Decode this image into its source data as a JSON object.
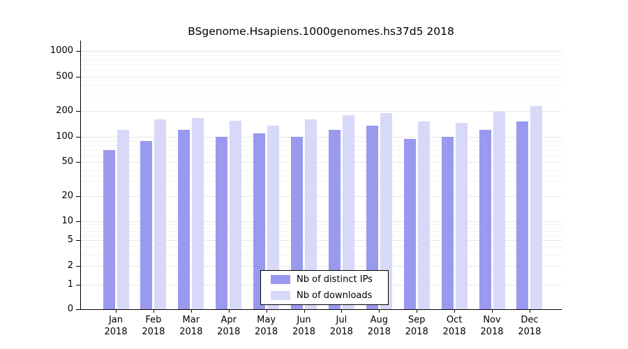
{
  "chart_data": {
    "type": "bar",
    "title": "BSgenome.Hsapiens.1000genomes.hs37d5 2018",
    "categories": [
      "Jan",
      "Feb",
      "Mar",
      "Apr",
      "May",
      "Jun",
      "Jul",
      "Aug",
      "Sep",
      "Oct",
      "Nov",
      "Dec"
    ],
    "category_year": "2018",
    "series": [
      {
        "name": "Nb of distinct IPs",
        "color": "#9999ee",
        "values": [
          70,
          90,
          120,
          100,
          110,
          100,
          120,
          135,
          95,
          100,
          120,
          150
        ]
      },
      {
        "name": "Nb of downloads",
        "color": "#d8d8f8",
        "values": [
          120,
          160,
          165,
          155,
          135,
          160,
          180,
          190,
          150,
          145,
          195,
          230
        ]
      }
    ],
    "yticks": [
      0,
      1,
      2,
      5,
      10,
      20,
      50,
      100,
      200,
      500,
      1000
    ],
    "yscale": "log-like",
    "ylim": [
      0,
      1000
    ],
    "grid": true,
    "legend_position": "bottom-center",
    "axis_color": "#000000",
    "gridline_major_color": "#e6e6e6",
    "gridline_minor_color": "#f3f3f3"
  }
}
